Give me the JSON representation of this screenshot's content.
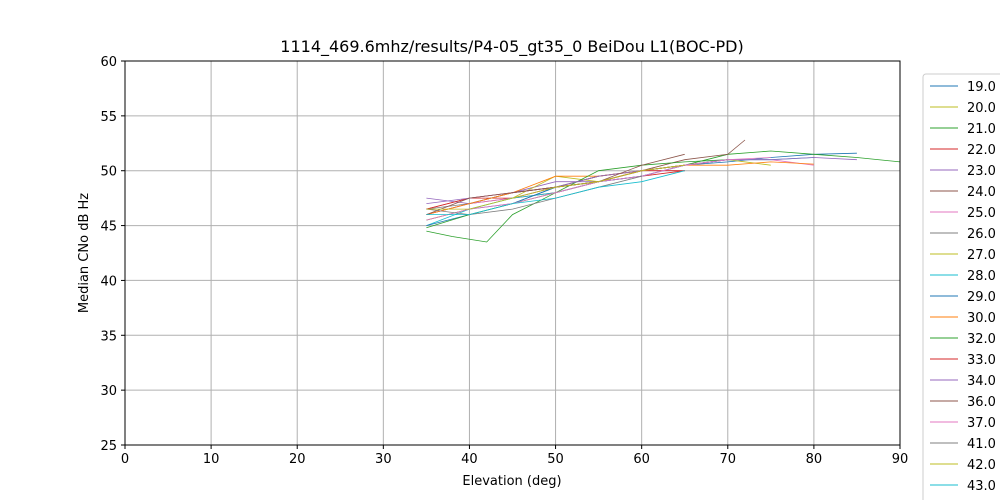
{
  "chart_data": {
    "type": "line",
    "title": "1114_469.6mhz/results/P4-05_gt35_0 BeiDou L1(BOC-PD)",
    "xlabel": "Elevation (deg)",
    "ylabel": "Median CNo dB Hz",
    "xlim": [
      0,
      90
    ],
    "ylim": [
      25,
      60
    ],
    "xticks": [
      0,
      10,
      20,
      30,
      40,
      50,
      60,
      70,
      80,
      90
    ],
    "yticks": [
      25,
      30,
      35,
      40,
      45,
      50,
      55,
      60
    ],
    "grid": true,
    "legend_position": "right",
    "series": [
      {
        "name": "19.0",
        "color": "#1f77b4",
        "x": [
          35,
          40,
          45,
          50,
          55,
          60,
          65,
          70,
          75,
          80,
          85
        ],
        "y": [
          45.5,
          46.5,
          47.0,
          48.5,
          49.0,
          50.0,
          50.5,
          50.8,
          51.2,
          51.5,
          51.6
        ]
      },
      {
        "name": "20.0",
        "color": "#bcbd22",
        "x": [
          35,
          40,
          45,
          50,
          55,
          60,
          65
        ],
        "y": [
          46.0,
          47.0,
          48.0,
          48.5,
          49.5,
          50.0,
          50.5
        ]
      },
      {
        "name": "21.0",
        "color": "#2ca02c",
        "x": [
          35,
          38,
          42,
          45,
          50,
          55,
          60,
          65,
          70,
          75,
          80,
          85,
          90
        ],
        "y": [
          44.5,
          44.0,
          43.5,
          46.0,
          48.0,
          49.0,
          50.0,
          50.5,
          51.5,
          51.8,
          51.5,
          51.2,
          50.8
        ]
      },
      {
        "name": "22.0",
        "color": "#d62728",
        "x": [
          35,
          40,
          45,
          50,
          55,
          60,
          65
        ],
        "y": [
          46.5,
          47.5,
          47.5,
          48.0,
          49.0,
          49.5,
          50.0
        ]
      },
      {
        "name": "23.0",
        "color": "#9467bd",
        "x": [
          35,
          40,
          45,
          50,
          55,
          60,
          65,
          70
        ],
        "y": [
          47.5,
          47.0,
          48.0,
          49.0,
          49.0,
          50.0,
          50.5,
          51.0
        ]
      },
      {
        "name": "24.0",
        "color": "#8c564b",
        "x": [
          35,
          40,
          45,
          50,
          55,
          60,
          65,
          70,
          72
        ],
        "y": [
          46.0,
          47.0,
          47.5,
          48.5,
          49.5,
          50.0,
          51.0,
          51.5,
          52.8
        ]
      },
      {
        "name": "25.0",
        "color": "#e377c2",
        "x": [
          35,
          40,
          45,
          50,
          55,
          60,
          65,
          70,
          75,
          80
        ],
        "y": [
          46.0,
          47.0,
          47.5,
          48.5,
          49.0,
          50.0,
          50.5,
          51.0,
          51.0,
          50.5
        ]
      },
      {
        "name": "26.0",
        "color": "#7f7f7f",
        "x": [
          35,
          40,
          45,
          50,
          55,
          60,
          65,
          70
        ],
        "y": [
          46.5,
          47.0,
          48.0,
          48.5,
          49.5,
          50.0,
          50.5,
          51.0
        ]
      },
      {
        "name": "27.0",
        "color": "#bcbd22",
        "x": [
          35,
          40,
          45,
          50,
          55,
          60,
          65,
          70,
          75
        ],
        "y": [
          45.5,
          46.5,
          47.5,
          49.5,
          49.0,
          50.0,
          50.5,
          51.0,
          50.5
        ]
      },
      {
        "name": "28.0",
        "color": "#17becf",
        "x": [
          35,
          40,
          45,
          50,
          55,
          60,
          65,
          70,
          75,
          80
        ],
        "y": [
          45.0,
          46.5,
          47.5,
          48.0,
          49.0,
          49.5,
          50.5,
          51.0,
          51.0,
          51.2
        ]
      },
      {
        "name": "29.0",
        "color": "#1f77b4",
        "x": [
          35,
          40,
          45,
          50,
          55,
          60,
          65,
          70
        ],
        "y": [
          45.0,
          46.0,
          47.0,
          48.5,
          49.0,
          49.5,
          50.5,
          51.0
        ]
      },
      {
        "name": "30.0",
        "color": "#ff7f0e",
        "x": [
          35,
          40,
          45,
          50,
          55,
          60,
          65,
          70,
          75,
          80
        ],
        "y": [
          46.0,
          47.0,
          48.0,
          49.5,
          49.5,
          50.0,
          50.5,
          50.5,
          50.8,
          50.6
        ]
      },
      {
        "name": "32.0",
        "color": "#2ca02c",
        "x": [
          35,
          40,
          45,
          50,
          55,
          60,
          65,
          70
        ],
        "y": [
          44.8,
          46.0,
          47.0,
          48.0,
          50.0,
          50.5,
          50.8,
          51.0
        ]
      },
      {
        "name": "33.0",
        "color": "#d62728",
        "x": [
          35,
          40,
          45,
          50,
          55,
          60,
          65
        ],
        "y": [
          46.5,
          47.5,
          48.0,
          48.5,
          49.0,
          50.0,
          50.0
        ]
      },
      {
        "name": "34.0",
        "color": "#9467bd",
        "x": [
          35,
          40,
          45,
          50,
          55,
          60,
          65,
          70,
          75,
          80,
          85
        ],
        "y": [
          47.0,
          47.5,
          48.0,
          48.5,
          49.5,
          50.0,
          50.5,
          51.0,
          51.0,
          51.2,
          51.0
        ]
      },
      {
        "name": "36.0",
        "color": "#8c564b",
        "x": [
          35,
          40,
          45,
          50,
          55,
          60,
          65
        ],
        "y": [
          46.0,
          47.5,
          48.0,
          48.5,
          49.0,
          50.5,
          51.5
        ]
      },
      {
        "name": "37.0",
        "color": "#e377c2",
        "x": [
          35,
          40,
          45,
          50,
          55,
          60,
          65,
          70,
          75
        ],
        "y": [
          45.5,
          46.5,
          47.0,
          48.0,
          49.0,
          49.5,
          50.5,
          51.0,
          51.2
        ]
      },
      {
        "name": "41.0",
        "color": "#7f7f7f",
        "x": [
          35,
          40,
          45,
          50,
          55,
          60
        ],
        "y": [
          46.5,
          46.0,
          46.5,
          47.5,
          48.5,
          49.5
        ]
      },
      {
        "name": "42.0",
        "color": "#bcbd22",
        "x": [
          35,
          40,
          45,
          50,
          55,
          60,
          65
        ],
        "y": [
          46.5,
          46.5,
          47.5,
          48.5,
          49.0,
          50.0,
          50.5
        ]
      },
      {
        "name": "43.0",
        "color": "#17becf",
        "x": [
          35,
          40,
          45,
          50,
          55,
          60,
          65
        ],
        "y": [
          46.0,
          46.0,
          47.0,
          47.5,
          48.5,
          49.0,
          50.0
        ]
      }
    ]
  }
}
